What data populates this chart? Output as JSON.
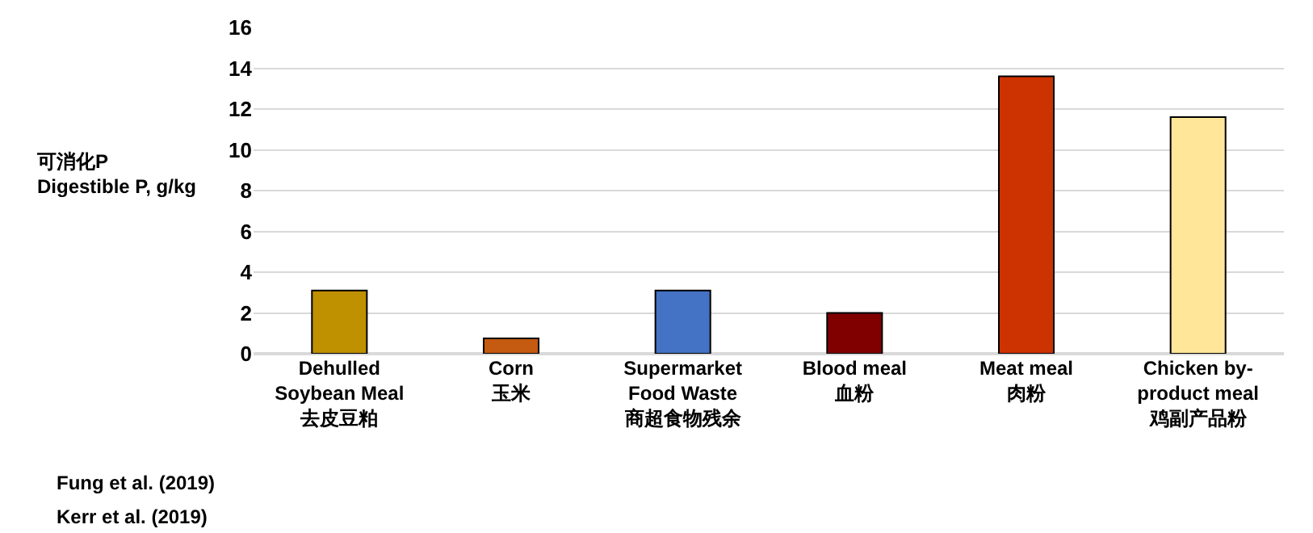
{
  "chart_data": {
    "type": "bar",
    "categories": [
      "Dehulled\nSoybean Meal\n去皮豆粕",
      "Corn\n玉米",
      "Supermarket\nFood Waste\n商超食物残余",
      "Blood meal\n血粉",
      "Meat meal\n肉粉",
      "Chicken by-\nproduct meal\n鸡副产品粉"
    ],
    "values": [
      3.1,
      0.75,
      3.1,
      2.0,
      13.6,
      11.6
    ],
    "colors": [
      "#bf9000",
      "#c55a11",
      "#4472c4",
      "#800000",
      "#cc3300",
      "#ffe699"
    ],
    "ylabel": "可消化P\nDigestible P, g/kg",
    "ylim": [
      0,
      16
    ],
    "yticks": [
      0,
      2,
      4,
      6,
      8,
      10,
      12,
      14,
      16
    ],
    "grid": "y",
    "annotations": [
      "Fung et al. (2019)",
      "Kerr et al. (2019)"
    ]
  }
}
